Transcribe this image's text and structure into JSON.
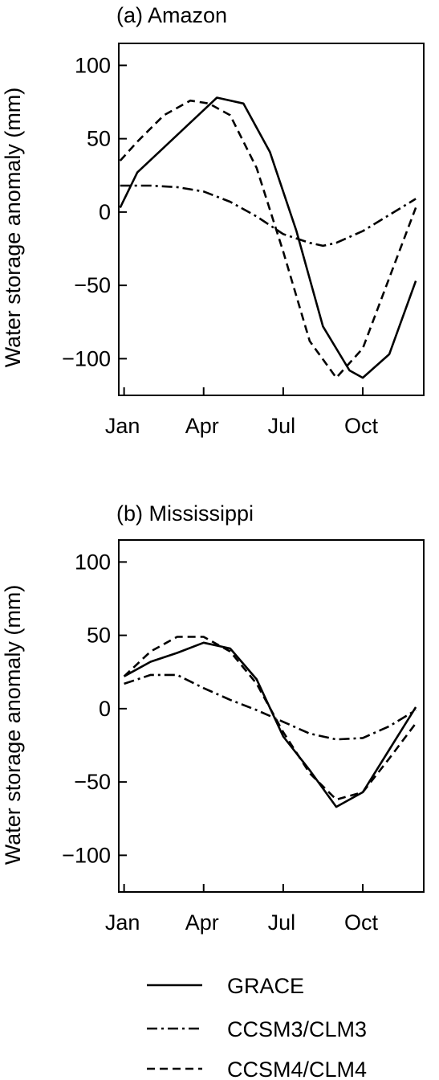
{
  "chart_data": [
    {
      "type": "line",
      "title": "(a) Amazon",
      "ylabel": "Water storage anomaly (mm)",
      "xlabel": "",
      "ylim": [
        -125,
        115
      ],
      "yticks": [
        100,
        50,
        0,
        -50,
        -100
      ],
      "yticklabels": [
        "100",
        "50",
        "0",
        "−50",
        "−100"
      ],
      "xlim": [
        0.8,
        12.3
      ],
      "xticks": [
        1,
        4,
        7,
        10
      ],
      "xticklabels": [
        "Jan",
        "Apr",
        "Jul",
        "Oct"
      ],
      "grid": false,
      "series": [
        {
          "name": "GRACE",
          "style": "solid",
          "x": [
            0.85,
            1.5,
            2.5,
            3.5,
            4.5,
            5.5,
            6.5,
            7.5,
            8.5,
            9.5,
            10.0,
            11.0,
            12.0
          ],
          "y": [
            3,
            27,
            44,
            61,
            78,
            74,
            41,
            -13,
            -78,
            -108,
            -113,
            -97,
            -47
          ]
        },
        {
          "name": "CCSM3/CLM3",
          "style": "dashdot",
          "x": [
            0.85,
            2.0,
            3.0,
            4.0,
            5.0,
            6.0,
            7.0,
            8.0,
            8.5,
            9.0,
            10.0,
            11.0,
            12.0
          ],
          "y": [
            18,
            18,
            17,
            14,
            7,
            -3,
            -15,
            -21,
            -23,
            -21,
            -13,
            -2,
            9
          ]
        },
        {
          "name": "CCSM4/CLM4",
          "style": "dashed",
          "x": [
            0.85,
            1.5,
            2.5,
            3.5,
            4.2,
            5.0,
            6.0,
            7.0,
            8.0,
            9.0,
            10.0,
            11.0,
            12.0
          ],
          "y": [
            35,
            48,
            66,
            76,
            74,
            66,
            30,
            -27,
            -88,
            -113,
            -93,
            -45,
            3
          ]
        }
      ]
    },
    {
      "type": "line",
      "title": "(b) Mississippi",
      "ylabel": "Water storage anomaly (mm)",
      "xlabel": "",
      "ylim": [
        -125,
        115
      ],
      "yticks": [
        100,
        50,
        0,
        -50,
        -100
      ],
      "yticklabels": [
        "100",
        "50",
        "0",
        "−50",
        "−100"
      ],
      "xlim": [
        0.8,
        12.3
      ],
      "xticks": [
        1,
        4,
        7,
        10
      ],
      "xticklabels": [
        "Jan",
        "Apr",
        "Jul",
        "Oct"
      ],
      "grid": false,
      "series": [
        {
          "name": "GRACE",
          "style": "solid",
          "x": [
            1.0,
            2.0,
            3.0,
            4.0,
            5.0,
            6.0,
            7.0,
            8.0,
            9.0,
            10.0,
            11.0,
            12.0
          ],
          "y": [
            22,
            32,
            38,
            45,
            41,
            20,
            -19,
            -42,
            -67,
            -57,
            -28,
            1
          ]
        },
        {
          "name": "CCSM3/CLM3",
          "style": "dashdot",
          "x": [
            1.0,
            2.0,
            3.0,
            4.0,
            5.0,
            6.0,
            7.0,
            8.0,
            9.0,
            10.0,
            11.0,
            12.0
          ],
          "y": [
            17,
            23,
            23,
            14,
            6,
            -1,
            -9,
            -17,
            -21,
            -20,
            -12,
            -1
          ]
        },
        {
          "name": "CCSM4/CLM4",
          "style": "dashed",
          "x": [
            1.0,
            2.0,
            3.0,
            4.0,
            5.0,
            6.0,
            7.0,
            8.0,
            9.0,
            10.0,
            11.0,
            12.0
          ],
          "y": [
            22,
            39,
            49,
            49,
            39,
            17,
            -16,
            -44,
            -62,
            -57,
            -34,
            -10
          ]
        }
      ]
    }
  ],
  "legend": {
    "placement": "bottom",
    "items": [
      {
        "label": "GRACE",
        "style": "solid"
      },
      {
        "label": "CCSM3/CLM3",
        "style": "dashdot"
      },
      {
        "label": "CCSM4/CLM4",
        "style": "dashed"
      }
    ]
  },
  "colors": {
    "line": "#000000",
    "background": "#ffffff"
  }
}
